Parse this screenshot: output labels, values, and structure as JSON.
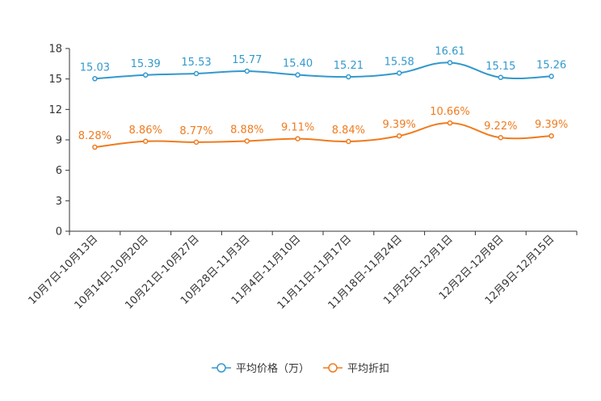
{
  "chart_data": {
    "type": "line",
    "title": "",
    "xlabel": "",
    "ylabel": "",
    "ylim": [
      0,
      18
    ],
    "yticks": [
      0,
      3,
      6,
      9,
      12,
      15,
      18
    ],
    "grid": false,
    "legend_position": "bottom",
    "categories": [
      "10月7日-10月13日",
      "10月14日-10月20日",
      "10月21日-10月27日",
      "10月28日-11月3日",
      "11月4日-11月10日",
      "11月11日-11月17日",
      "11月18日-11月24日",
      "11月25日-12月1日",
      "12月2日-12月8日",
      "12月9日-12月15日"
    ],
    "series": [
      {
        "name": "平均价格（万）",
        "color": "#3399cc",
        "values": [
          15.03,
          15.39,
          15.53,
          15.77,
          15.4,
          15.21,
          15.58,
          16.61,
          15.15,
          15.26
        ],
        "labels": [
          "15.03",
          "15.39",
          "15.53",
          "15.77",
          "15.40",
          "15.21",
          "15.58",
          "16.61",
          "15.15",
          "15.26"
        ]
      },
      {
        "name": "平均折扣",
        "color": "#f07b1e",
        "values": [
          8.28,
          8.86,
          8.77,
          8.88,
          9.11,
          8.84,
          9.39,
          10.66,
          9.22,
          9.39
        ],
        "labels": [
          "8.28%",
          "8.86%",
          "8.77%",
          "8.88%",
          "9.11%",
          "8.84%",
          "9.39%",
          "10.66%",
          "9.22%",
          "9.39%"
        ]
      }
    ]
  }
}
